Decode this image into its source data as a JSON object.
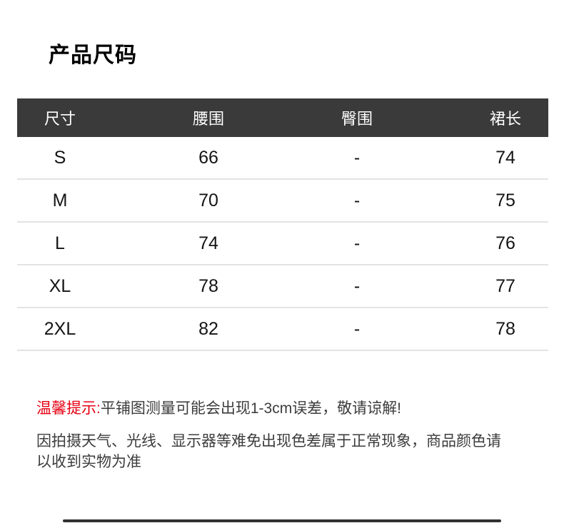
{
  "page": {
    "title": "产品尺码"
  },
  "size_table": {
    "columns": [
      "尺寸",
      "腰围",
      "臀围",
      "裙长"
    ],
    "rows": [
      {
        "size": "S",
        "waist": "66",
        "hip": "-",
        "length": "74"
      },
      {
        "size": "M",
        "waist": "70",
        "hip": "-",
        "length": "75"
      },
      {
        "size": "L",
        "waist": "74",
        "hip": "-",
        "length": "76"
      },
      {
        "size": "XL",
        "waist": "78",
        "hip": "-",
        "length": "77"
      },
      {
        "size": "2XL",
        "waist": "82",
        "hip": "-",
        "length": "78"
      }
    ]
  },
  "notes": {
    "tip_label": "温馨提示:",
    "tip_text": "平铺图测量可能会出现1-3cm误差，敬请谅解!",
    "disclaimer": "因拍摄天气、光线、显示器等难免出现色差属于正常现象，商品颜色请以收到实物为准"
  },
  "colors": {
    "header_bg": "#3a3a3a",
    "header_text": "#ffffff",
    "row_divider": "#e3e3e3",
    "tip_red": "#e60012",
    "body_text": "#3c3c3c"
  }
}
